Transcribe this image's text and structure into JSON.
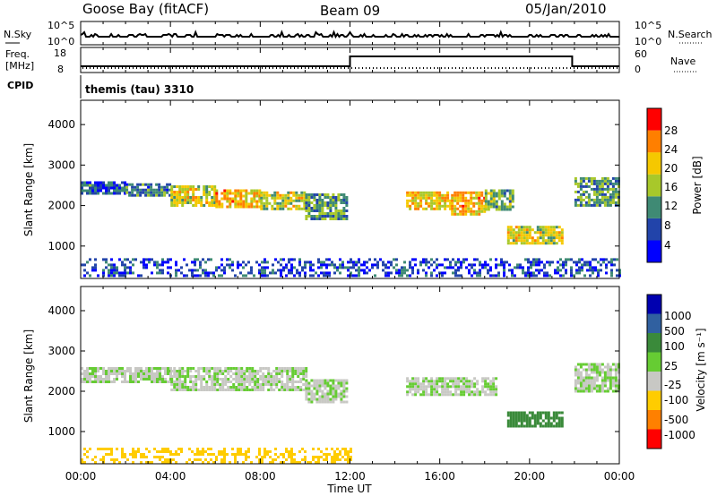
{
  "header": {
    "station": "Goose Bay (fitACF)",
    "beam": "Beam 09",
    "date": "05/Jan/2010"
  },
  "top_panels": {
    "nsky_label": "N.Sky",
    "nsearch_label": "N.Search",
    "nsky_ticks": [
      "10^5",
      "10^0"
    ],
    "nsearch_ticks": [
      "10^5",
      "10^0"
    ],
    "freq_label_1": "Freq.",
    "freq_label_2": "[MHz]",
    "freq_ticks": [
      "18",
      "8"
    ],
    "nave_label": "Nave",
    "nave_ticks": [
      "60",
      "0"
    ],
    "cpid_label": "CPID",
    "cpid_value": "themis (tau) 3310"
  },
  "x_axis": {
    "label": "Time UT",
    "ticks": [
      "00:00",
      "04:00",
      "08:00",
      "12:00",
      "16:00",
      "20:00",
      "00:00"
    ]
  },
  "power_colorbar": {
    "label": "Power [dB]",
    "ticks": [
      "28",
      "24",
      "20",
      "16",
      "12",
      "8",
      "4"
    ],
    "colors": [
      "#0000ff",
      "#2244aa",
      "#3f8a74",
      "#a8c82a",
      "#f5c800",
      "#ff7f00",
      "#ff0000"
    ]
  },
  "velocity_colorbar": {
    "label": "Velocity [m s⁻¹]",
    "ticks": [
      "1000",
      "500",
      "100",
      "25",
      "-25",
      "-100",
      "-500",
      "-1000"
    ],
    "colors": [
      "#0000b0",
      "#3060a0",
      "#3a8a3a",
      "#66cc33",
      "#c8c8c4",
      "#ffcc00",
      "#ff8000",
      "#ff0000"
    ]
  },
  "chart_data": [
    {
      "type": "heatmap",
      "name": "Power",
      "ylabel": "Slant Range [km]",
      "xlabel": "Time UT",
      "xlim": [
        0,
        24
      ],
      "ylim": [
        200,
        4600
      ],
      "yticks": [
        1000,
        2000,
        3000,
        4000
      ],
      "colorbar": {
        "label": "Power [dB]",
        "range": [
          0,
          32
        ]
      },
      "regions": [
        {
          "t": [
            0.0,
            2.0
          ],
          "r": [
            2300,
            2600
          ],
          "value": 8
        },
        {
          "t": [
            2.0,
            4.0
          ],
          "r": [
            2250,
            2550
          ],
          "value": 10
        },
        {
          "t": [
            4.0,
            6.0
          ],
          "r": [
            2000,
            2500
          ],
          "value": 18
        },
        {
          "t": [
            6.0,
            8.0
          ],
          "r": [
            2000,
            2400
          ],
          "value": 22
        },
        {
          "t": [
            8.0,
            10.0
          ],
          "r": [
            1950,
            2350
          ],
          "value": 18
        },
        {
          "t": [
            10.0,
            11.8
          ],
          "r": [
            1700,
            2300
          ],
          "value": 12
        },
        {
          "t": [
            14.5,
            16.5
          ],
          "r": [
            1900,
            2350
          ],
          "value": 20
        },
        {
          "t": [
            16.5,
            18.0
          ],
          "r": [
            1800,
            2350
          ],
          "value": 22
        },
        {
          "t": [
            18.0,
            19.2
          ],
          "r": [
            1900,
            2400
          ],
          "value": 14
        },
        {
          "t": [
            19.0,
            21.5
          ],
          "r": [
            1100,
            1500
          ],
          "value": 18
        },
        {
          "t": [
            22.0,
            24.0
          ],
          "r": [
            2000,
            2700
          ],
          "value": 12
        },
        {
          "t": [
            0.0,
            24.0
          ],
          "r": [
            250,
            700
          ],
          "value": 6
        }
      ]
    },
    {
      "type": "heatmap",
      "name": "Velocity",
      "ylabel": "Slant Range [km]",
      "xlabel": "Time UT",
      "xlim": [
        0,
        24
      ],
      "ylim": [
        200,
        4600
      ],
      "yticks": [
        1000,
        2000,
        3000,
        4000
      ],
      "colorbar": {
        "label": "Velocity [m s⁻¹]",
        "range": [
          -1000,
          1000
        ]
      },
      "regions": [
        {
          "t": [
            0.0,
            4.0
          ],
          "r": [
            2250,
            2600
          ],
          "value": 0
        },
        {
          "t": [
            4.0,
            10.0
          ],
          "r": [
            2000,
            2600
          ],
          "value": 0
        },
        {
          "t": [
            10.0,
            11.8
          ],
          "r": [
            1700,
            2300
          ],
          "value": 0
        },
        {
          "t": [
            14.5,
            18.5
          ],
          "r": [
            1900,
            2350
          ],
          "value": 0
        },
        {
          "t": [
            19.0,
            21.5
          ],
          "r": [
            1100,
            1500
          ],
          "value": 60
        },
        {
          "t": [
            22.0,
            24.0
          ],
          "r": [
            2000,
            2700
          ],
          "value": 0
        },
        {
          "t": [
            0.0,
            12.0
          ],
          "r": [
            250,
            600
          ],
          "value": -80
        }
      ]
    }
  ]
}
